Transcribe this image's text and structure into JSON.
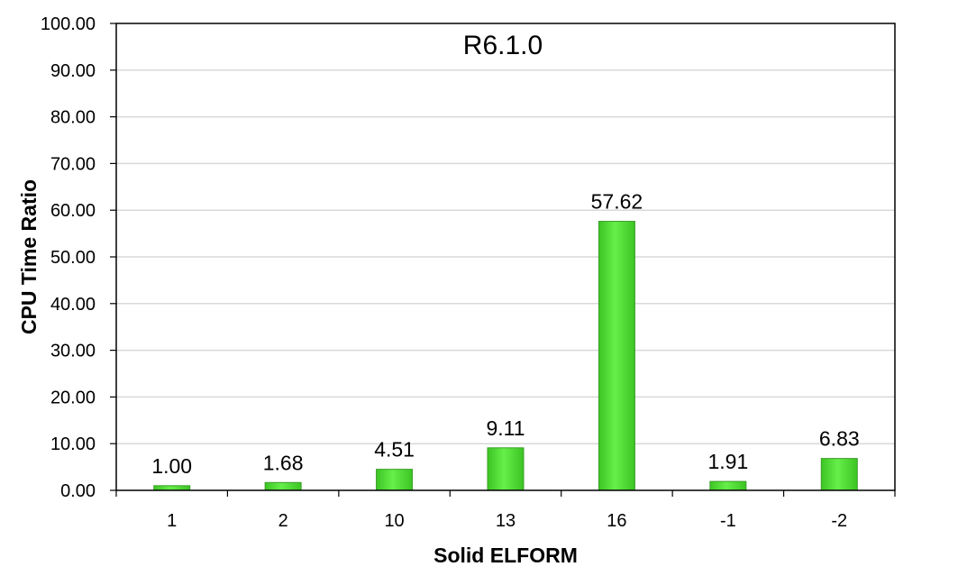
{
  "chart_data": {
    "type": "bar",
    "title": "R6.1.0",
    "xlabel": "Solid ELFORM",
    "ylabel": "CPU Time Ratio",
    "categories": [
      "1",
      "2",
      "10",
      "13",
      "16",
      "-1",
      "-2"
    ],
    "values": [
      1.0,
      1.68,
      4.51,
      9.11,
      57.62,
      1.91,
      6.83
    ],
    "data_labels": [
      "1.00",
      "1.68",
      "4.51",
      "9.11",
      "57.62",
      "1.91",
      "6.83"
    ],
    "ylim": [
      0,
      100
    ],
    "yticks": [
      0,
      10,
      20,
      30,
      40,
      50,
      60,
      70,
      80,
      90,
      100
    ],
    "ytick_labels": [
      "0.00",
      "10.00",
      "20.00",
      "30.00",
      "40.00",
      "50.00",
      "60.00",
      "70.00",
      "80.00",
      "90.00",
      "100.00"
    ],
    "grid": true,
    "legend": "none",
    "bar_color": "#55e03a",
    "bar_edge_color": "#3a9e28"
  }
}
